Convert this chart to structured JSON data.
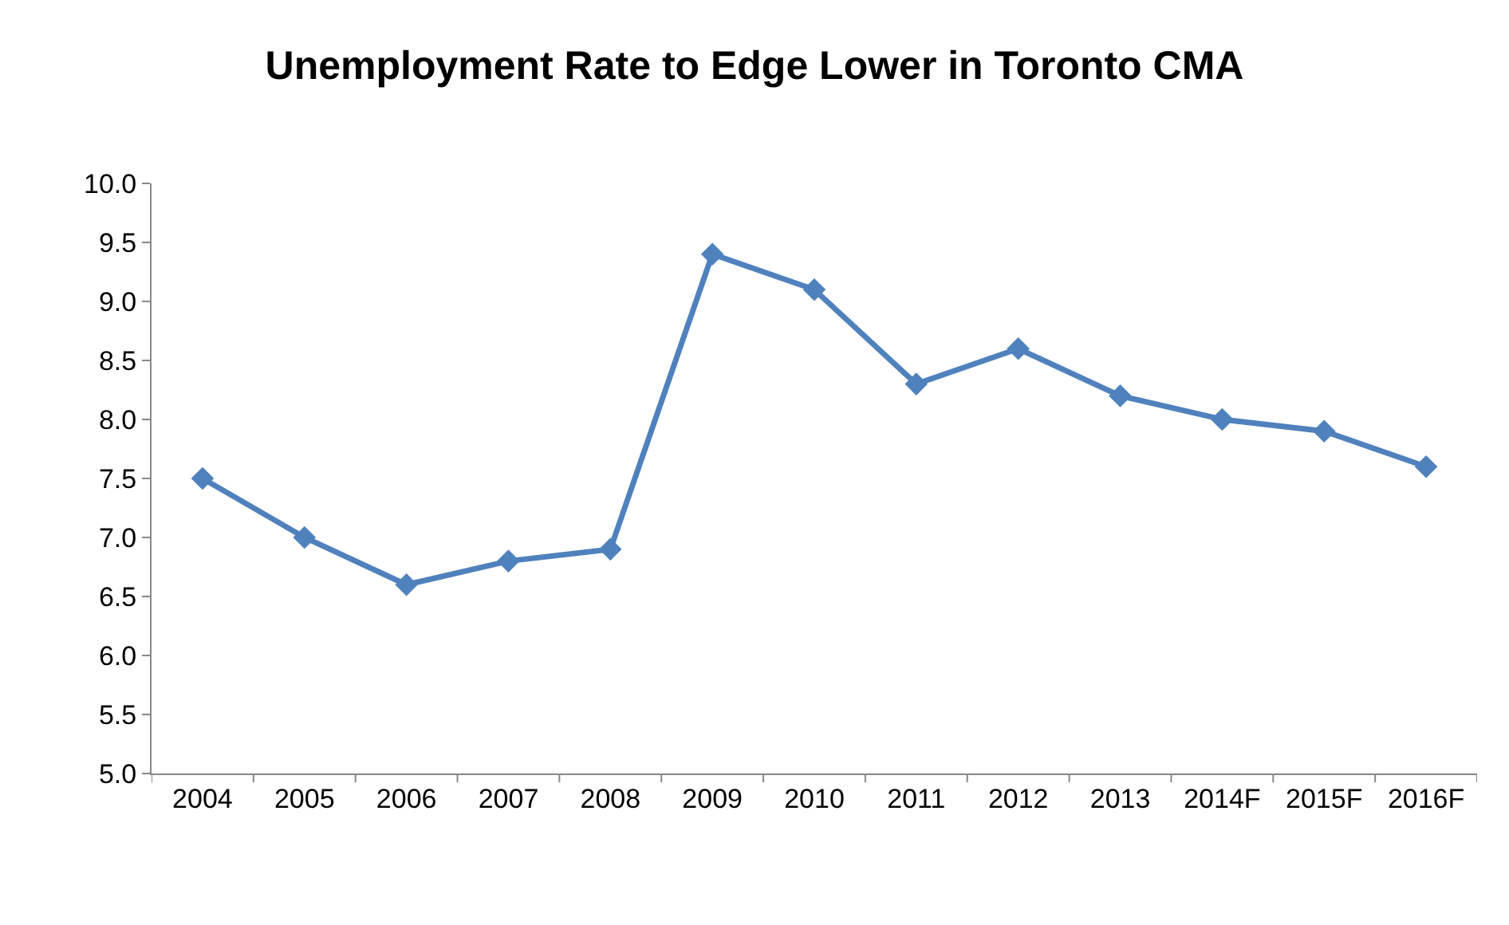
{
  "chart_data": {
    "type": "line",
    "title": "Unemployment Rate to Edge Lower in Toronto CMA",
    "categories": [
      "2004",
      "2005",
      "2006",
      "2007",
      "2008",
      "2009",
      "2010",
      "2011",
      "2012",
      "2013",
      "2014F",
      "2015F",
      "2016F"
    ],
    "series": [
      {
        "color": "#4f81bd",
        "values": [
          7.5,
          7.0,
          6.6,
          6.8,
          6.9,
          9.4,
          9.1,
          8.3,
          8.6,
          8.2,
          8.0,
          7.9,
          7.6
        ]
      }
    ],
    "ylim": [
      5.0,
      10.0
    ],
    "yticks": [
      {
        "value": 5,
        "label": "5.0"
      },
      {
        "value": 5.5,
        "label": "5.5"
      },
      {
        "value": 6,
        "label": "6.0"
      },
      {
        "value": 6.5,
        "label": "6.5"
      },
      {
        "value": 7,
        "label": "7.0"
      },
      {
        "value": 7.5,
        "label": "7.5"
      },
      {
        "value": 8,
        "label": "8.0"
      },
      {
        "value": 8.5,
        "label": "8.5"
      },
      {
        "value": 9,
        "label": "9.0"
      },
      {
        "value": 9.5,
        "label": "9.5"
      },
      {
        "value": 10,
        "label": "10.0"
      }
    ],
    "marker": "diamond",
    "line_style": "solid"
  }
}
